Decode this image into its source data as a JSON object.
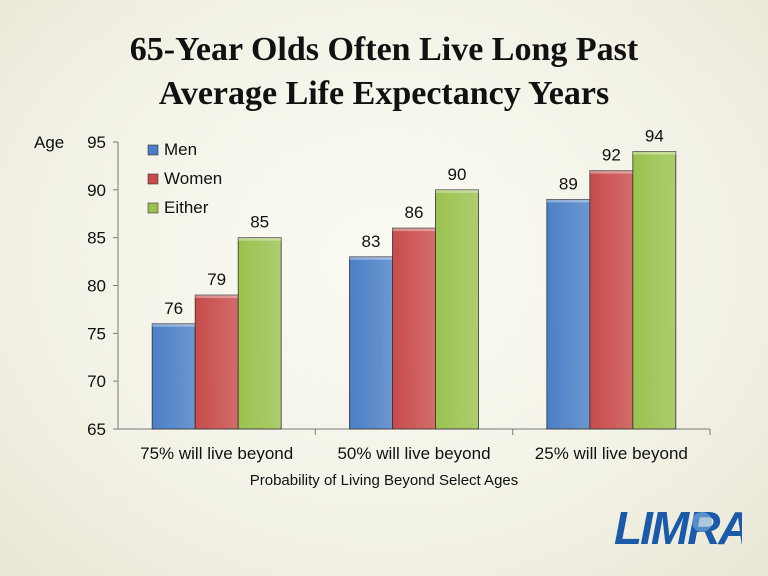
{
  "title_line1": "65-Year Olds Often Live Long Past",
  "title_line2": "Average Life Expectancy Years",
  "logo_text": "LIMRA",
  "chart_data": {
    "type": "bar",
    "title": "65-Year Olds Often Live Long Past Average Life Expectancy Years",
    "xlabel": "Probability of Living Beyond Select Ages",
    "ylabel": "Age",
    "ylim": [
      65,
      95
    ],
    "yticks": [
      65,
      70,
      75,
      80,
      85,
      90,
      95
    ],
    "categories": [
      "75% will live beyond",
      "50% will live beyond",
      "25% will live beyond"
    ],
    "series": [
      {
        "name": "Men",
        "values": [
          76,
          83,
          89
        ],
        "color": "#4a7fc7"
      },
      {
        "name": "Women",
        "values": [
          79,
          86,
          92
        ],
        "color": "#c84b4b"
      },
      {
        "name": "Either",
        "values": [
          85,
          90,
          94
        ],
        "color": "#9bc24f"
      }
    ],
    "legend_position": "top-left",
    "grid": false,
    "data_labels": true
  }
}
